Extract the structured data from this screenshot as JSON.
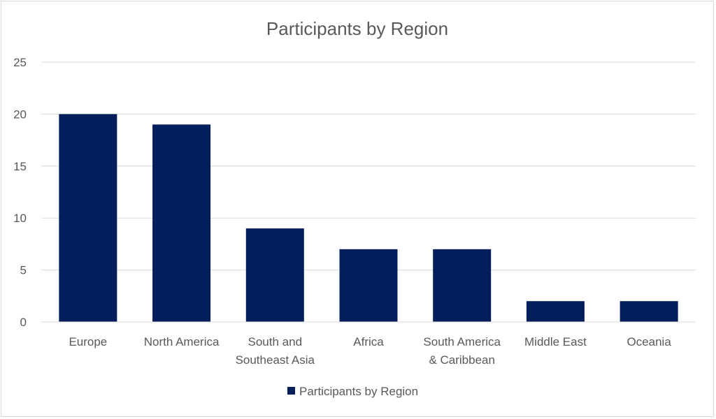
{
  "chart_data": {
    "type": "bar",
    "title": "Participants by Region",
    "categories": [
      "Europe",
      "North America",
      "South and Southeast Asia",
      "Africa",
      "South America & Caribbean",
      "Middle East",
      "Oceania"
    ],
    "category_lines": [
      [
        "Europe"
      ],
      [
        "North America"
      ],
      [
        "South and",
        "Southeast Asia"
      ],
      [
        "Africa"
      ],
      [
        "South America",
        "& Caribbean"
      ],
      [
        "Middle East"
      ],
      [
        "Oceania"
      ]
    ],
    "series": [
      {
        "name": "Participants by Region",
        "values": [
          20,
          19,
          9,
          7,
          7,
          2,
          2
        ],
        "color": "#021F5C"
      }
    ],
    "ylim": [
      0,
      25
    ],
    "yticks": [
      0,
      5,
      10,
      15,
      20,
      25
    ],
    "grid": true,
    "legend": "bottom",
    "colors": {
      "bar": "#021F5C",
      "gridline": "#D9D9D9",
      "text": "#595959"
    }
  }
}
